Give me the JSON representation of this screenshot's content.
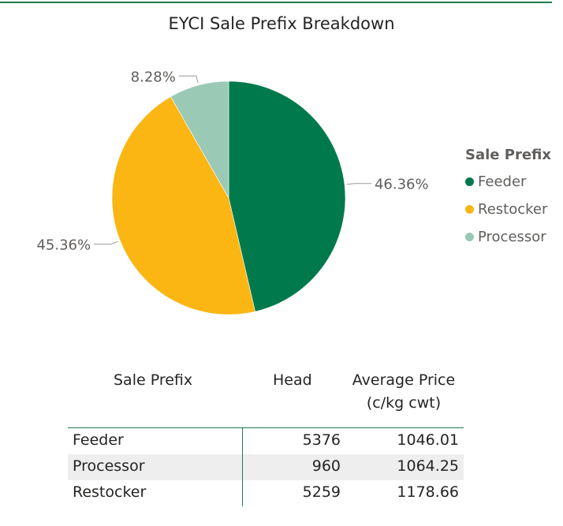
{
  "chart_data": {
    "type": "pie",
    "title": "EYCI Sale Prefix Breakdown",
    "legend_title": "Sale Prefix",
    "legend_position": "right",
    "slices": [
      {
        "name": "Feeder",
        "percent": 46.36,
        "label": "46.36%",
        "color": "#007a4c"
      },
      {
        "name": "Restocker",
        "percent": 45.36,
        "label": "45.36%",
        "color": "#fbb614"
      },
      {
        "name": "Processor",
        "percent": 8.28,
        "label": "8.28%",
        "color": "#9ac9b6"
      }
    ]
  },
  "table": {
    "headers": {
      "prefix": "Sale Prefix",
      "head": "Head",
      "price_line1": "Average Price",
      "price_line2": "(c/kg cwt)"
    },
    "rows": [
      {
        "prefix": "Feeder",
        "head": "5376",
        "price": "1046.01"
      },
      {
        "prefix": "Processor",
        "head": "960",
        "price": "1064.25"
      },
      {
        "prefix": "Restocker",
        "head": "5259",
        "price": "1178.66"
      }
    ]
  }
}
